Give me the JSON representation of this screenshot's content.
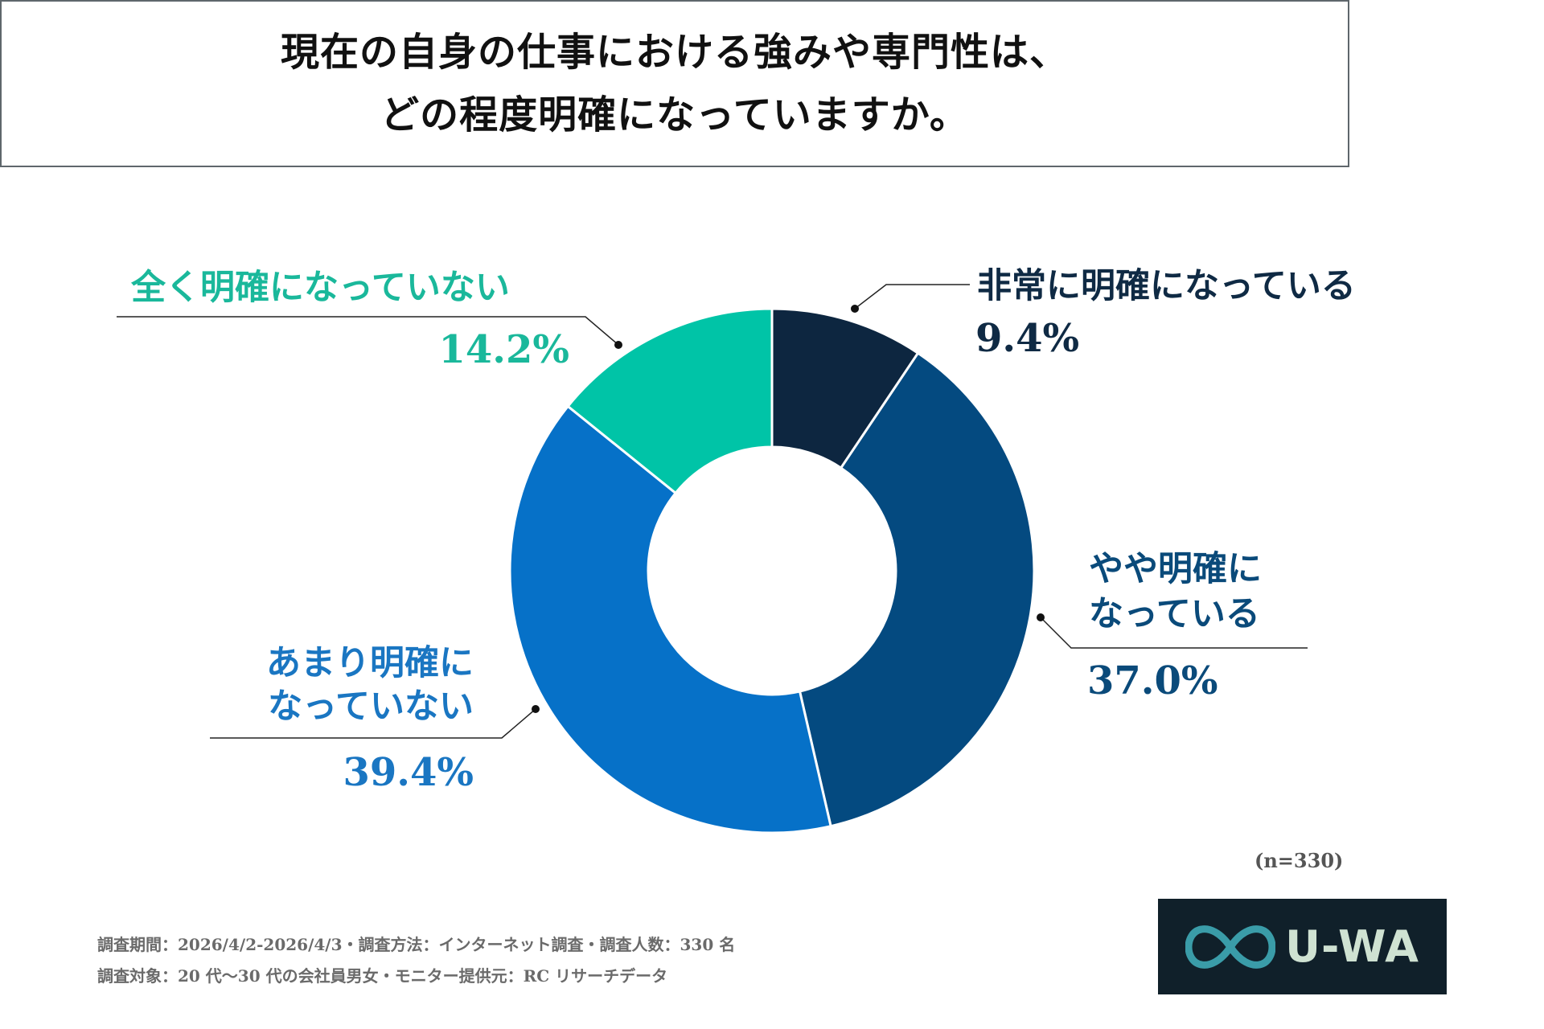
{
  "title": {
    "line1": "現在の自身の仕事における強みや専門性は、",
    "line2": "どの程度明確になっていますか。"
  },
  "chart_data": {
    "type": "pie",
    "donut": true,
    "start": "top",
    "direction": "clockwise",
    "legend": "callout labels",
    "slices": [
      {
        "label": "非常に明確になっている",
        "value": 9.4,
        "value_label": "9.4%",
        "color": "#0d2640",
        "label_color": "#0f2a44"
      },
      {
        "label": "やや明確になっている",
        "label_lines": [
          "やや明確に",
          "なっている"
        ],
        "value": 37.0,
        "value_label": "37.0%",
        "color": "#044a80",
        "label_color": "#0a4a7a"
      },
      {
        "label": "あまり明確になっていない",
        "label_lines": [
          "あまり明確に",
          "なっていない"
        ],
        "value": 39.4,
        "value_label": "39.4%",
        "color": "#0671c8",
        "label_color": "#1a76c2"
      },
      {
        "label": "全く明確になっていない",
        "value": 14.2,
        "value_label": "14.2%",
        "color": "#00c4a7",
        "label_color": "#1ab89b"
      }
    ],
    "sample_size": "(n=330)"
  },
  "footer": {
    "line1": "調査期間：2026/4/2-2026/4/3・調査方法：インターネット調査・調査人数：330 名",
    "line2": "調査対象：20 代〜30 代の会社員男女・モニター提供元：RC リサーチデータ"
  },
  "logo": {
    "text": "U-WA",
    "icon": "infinity-icon",
    "bg": "#10202a",
    "icon_color": "#3a9ca8"
  }
}
